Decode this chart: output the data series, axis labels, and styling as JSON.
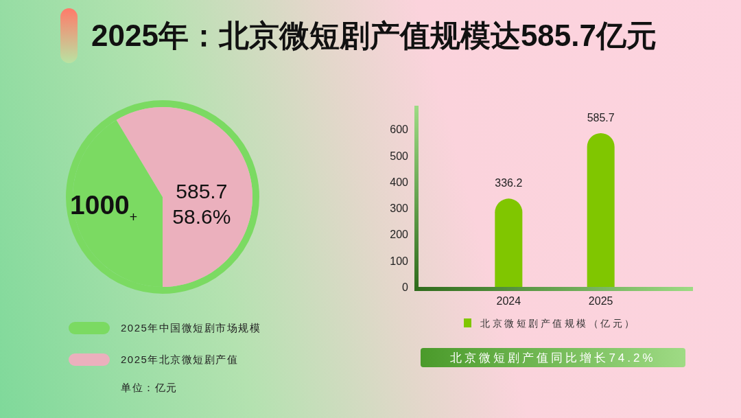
{
  "chart_data": [
    {
      "type": "pie",
      "title": "2025年：北京微短剧产值规模达585.7亿元",
      "categories": [
        "2025年中国微短剧市场规模",
        "2025年北京微短剧产值"
      ],
      "values": [
        41.4,
        58.6
      ],
      "colors": [
        "#7bda62",
        "#ebb0bd"
      ],
      "value_labels": [
        null,
        "585.7\n58.6%"
      ],
      "legend": "bottom",
      "annotations": [
        "**1000**$_{+}$",
        "单位：亿元"
      ]
    },
    {
      "type": "bar",
      "categories": [
        "2024",
        "2025"
      ],
      "series": [
        {
          "name": "北京微短剧产值规模（亿元）",
          "color": "#80c600",
          "values": [
            336.2,
            585.7
          ]
        }
      ],
      "ylim": [
        0,
        690
      ],
      "yticks": [
        0,
        100,
        200,
        300,
        400,
        500,
        600
      ],
      "data_labels": true,
      "legend": "bottom",
      "annotations": [
        "北京微短剧产值同比增长74.2%"
      ]
    }
  ]
}
